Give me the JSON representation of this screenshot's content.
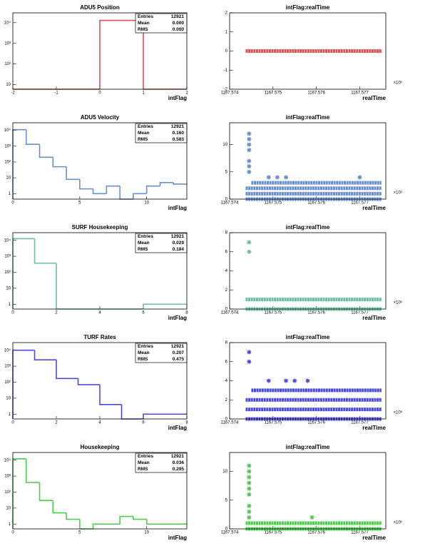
{
  "chart_data": [
    {
      "type": "histogram",
      "title": "ADU5 Position",
      "x_label": "intFlag",
      "color": "#d9534f",
      "log_y": true,
      "bins": [
        -2,
        -1,
        0,
        1,
        2
      ],
      "values": [
        0,
        0,
        12921,
        0
      ],
      "xlim": [
        -2,
        2
      ],
      "xticks": [
        -2,
        -1,
        0,
        1,
        2
      ],
      "ylim": [
        6,
        30000
      ],
      "yticks": [
        10,
        {
          "value": 100,
          "label": "10²"
        },
        {
          "value": 1000,
          "label": "10³"
        },
        {
          "value": 10000,
          "label": "10⁴"
        }
      ],
      "stats": {
        "labels": [
          "Entries",
          "Mean",
          "RMS"
        ],
        "values": [
          "12921",
          "0.000",
          "0.000"
        ]
      }
    },
    {
      "type": "scatter",
      "title": "intFlag:realTime",
      "x_label": "realTime",
      "x_multiplier": "×10⁵",
      "color": "#d9534f",
      "xlim": [
        1167.574,
        1167.5776
      ],
      "xticks": [
        1167.574,
        1167.575,
        1167.576,
        1167.577
      ],
      "ylim": [
        -2,
        2
      ],
      "yticks": [
        -2,
        -1,
        0,
        1,
        2
      ],
      "bands": [
        {
          "value": 0,
          "xrange": [
            1167.57437,
            1167.5775
          ]
        }
      ],
      "x": [],
      "values": []
    },
    {
      "type": "histogram",
      "title": "ADU5 Velocity",
      "x_label": "intFlag",
      "color": "#6a8fd0",
      "log_y": true,
      "bins": [
        0,
        1,
        2,
        3,
        4,
        5,
        6,
        7,
        8,
        9,
        10,
        11,
        12,
        13
      ],
      "values": [
        11000,
        1300,
        200,
        50,
        8,
        2,
        1,
        3,
        0,
        1,
        3,
        5,
        4
      ],
      "xlim": [
        0,
        13
      ],
      "xticks": [
        0,
        5,
        10
      ],
      "ylim": [
        0.45,
        30000
      ],
      "yticks": [
        1,
        10,
        {
          "value": 100,
          "label": "10²"
        },
        {
          "value": 1000,
          "label": "10³"
        },
        {
          "value": 10000,
          "label": "10⁴"
        }
      ],
      "stats": {
        "labels": [
          "Entries",
          "Mean",
          "RMS"
        ],
        "values": [
          "12921",
          "0.160",
          "0.583"
        ]
      }
    },
    {
      "type": "scatter",
      "title": "intFlag:realTime",
      "x_label": "realTime",
      "x_multiplier": "×10⁵",
      "color": "#6a8fd0",
      "xlim": [
        1167.574,
        1167.5776
      ],
      "xticks": [
        1167.574,
        1167.575,
        1167.576,
        1167.577
      ],
      "ylim": [
        0,
        14
      ],
      "yticks": [
        0,
        5,
        10
      ],
      "bands": [
        {
          "value": 0,
          "xrange": [
            1167.57437,
            1167.5775
          ]
        },
        {
          "value": 1,
          "xrange": [
            1167.57437,
            1167.5775
          ]
        },
        {
          "value": 2,
          "xrange": [
            1167.57437,
            1167.5775
          ]
        },
        {
          "value": 3,
          "xrange": [
            1167.5745,
            1167.5775
          ]
        }
      ],
      "x": [
        1167.57445,
        1167.57445,
        1167.57445,
        1167.57445,
        1167.57445,
        1167.57445,
        1167.57445,
        1167.5749,
        1167.5751,
        1167.5753,
        1167.577
      ],
      "values": [
        5,
        6,
        7,
        9,
        10,
        11,
        12,
        4,
        4,
        4,
        4
      ]
    },
    {
      "type": "histogram",
      "title": "SURF Housekeeping",
      "x_label": "intFlag",
      "color": "#6bbf9a",
      "log_y": true,
      "bins": [
        0,
        1,
        2,
        3,
        4,
        5,
        6,
        7,
        8
      ],
      "values": [
        12550,
        370,
        0,
        0,
        0,
        0,
        1,
        1
      ],
      "xlim": [
        0,
        8
      ],
      "xticks": [
        0,
        2,
        4,
        6,
        8
      ],
      "ylim": [
        0.5,
        30000
      ],
      "yticks": [
        1,
        10,
        {
          "value": 100,
          "label": "10²"
        },
        {
          "value": 1000,
          "label": "10³"
        },
        {
          "value": 10000,
          "label": "10⁴"
        }
      ],
      "stats": {
        "labels": [
          "Entries",
          "Mean",
          "RMS"
        ],
        "values": [
          "12921",
          "0.029",
          "0.184"
        ]
      }
    },
    {
      "type": "scatter",
      "title": "intFlag:realTime",
      "x_label": "realTime",
      "x_multiplier": "×10⁵",
      "color": "#6bbf9a",
      "xlim": [
        1167.574,
        1167.5776
      ],
      "xticks": [
        1167.574,
        1167.575,
        1167.576,
        1167.577
      ],
      "ylim": [
        0,
        8
      ],
      "yticks": [
        0,
        2,
        4,
        6,
        8
      ],
      "bands": [
        {
          "value": 0,
          "xrange": [
            1167.57437,
            1167.5775
          ]
        },
        {
          "value": 1,
          "xrange": [
            1167.57437,
            1167.5775
          ]
        }
      ],
      "x": [
        1167.57445,
        1167.57445
      ],
      "values": [
        6,
        7
      ]
    },
    {
      "type": "histogram",
      "title": "TURF Rates",
      "x_label": "intFlag",
      "color": "#4a4adf",
      "log_y": true,
      "bins": [
        0,
        1,
        2,
        3,
        4,
        5,
        6,
        7,
        8
      ],
      "values": [
        10000,
        2500,
        170,
        70,
        4,
        0,
        1,
        1
      ],
      "xlim": [
        0,
        8
      ],
      "xticks": [
        0,
        2,
        4,
        6,
        8
      ],
      "ylim": [
        0.5,
        30000
      ],
      "yticks": [
        1,
        10,
        {
          "value": 100,
          "label": "10²"
        },
        {
          "value": 1000,
          "label": "10³"
        },
        {
          "value": 10000,
          "label": "10⁴"
        }
      ],
      "stats": {
        "labels": [
          "Entries",
          "Mean",
          "RMS"
        ],
        "values": [
          "12921",
          "0.207",
          "0.475"
        ]
      }
    },
    {
      "type": "scatter",
      "title": "intFlag:realTime",
      "x_label": "realTime",
      "x_multiplier": "×10⁵",
      "color": "#4a4adf",
      "xlim": [
        1167.574,
        1167.5776
      ],
      "xticks": [
        1167.574,
        1167.575,
        1167.576,
        1167.577
      ],
      "ylim": [
        0,
        8
      ],
      "yticks": [
        0,
        2,
        4,
        6,
        8
      ],
      "bands": [
        {
          "value": 0,
          "xrange": [
            1167.57437,
            1167.5775
          ]
        },
        {
          "value": 1,
          "xrange": [
            1167.57437,
            1167.5775
          ]
        },
        {
          "value": 2,
          "xrange": [
            1167.57437,
            1167.5775
          ]
        },
        {
          "value": 3,
          "xrange": [
            1167.5745,
            1167.5775
          ]
        }
      ],
      "x": [
        1167.57445,
        1167.57445,
        1167.5749,
        1167.5753,
        1167.5755,
        1167.5758
      ],
      "values": [
        6,
        7,
        4,
        4,
        4,
        4
      ]
    },
    {
      "type": "histogram",
      "title": "Housekeeping",
      "x_label": "intFlag",
      "color": "#4ccc4c",
      "log_y": true,
      "bins": [
        0,
        1,
        2,
        3,
        4,
        5,
        6,
        7,
        8,
        9,
        10,
        11,
        12,
        13
      ],
      "values": [
        12000,
        400,
        30,
        5,
        2,
        0,
        1,
        1,
        3,
        2,
        1,
        1,
        1
      ],
      "xlim": [
        0,
        13
      ],
      "xticks": [
        0,
        5,
        10
      ],
      "ylim": [
        0.5,
        30000
      ],
      "yticks": [
        1,
        10,
        {
          "value": 100,
          "label": "10²"
        },
        {
          "value": 1000,
          "label": "10³"
        },
        {
          "value": 10000,
          "label": "10⁴"
        }
      ],
      "stats": {
        "labels": [
          "Entries",
          "Mean",
          "RMS"
        ],
        "values": [
          "12921",
          "0.036",
          "0.295"
        ]
      }
    },
    {
      "type": "scatter",
      "title": "intFlag:realTime",
      "x_label": "realTime",
      "x_multiplier": "×10⁵",
      "color": "#4ccc4c",
      "xlim": [
        1167.574,
        1167.5776
      ],
      "xticks": [
        1167.574,
        1167.575,
        1167.576,
        1167.577
      ],
      "ylim": [
        0,
        13.3
      ],
      "yticks": [
        0,
        5,
        10
      ],
      "bands": [
        {
          "value": 0,
          "xrange": [
            1167.57437,
            1167.5775
          ]
        },
        {
          "value": 1,
          "xrange": [
            1167.57437,
            1167.5775
          ]
        }
      ],
      "x": [
        1167.57445,
        1167.57445,
        1167.57445,
        1167.57445,
        1167.57445,
        1167.57445,
        1167.57445,
        1167.57445,
        1167.57445,
        1167.5759
      ],
      "values": [
        2,
        3,
        4,
        6,
        7,
        8,
        9,
        10,
        11,
        2
      ]
    }
  ]
}
